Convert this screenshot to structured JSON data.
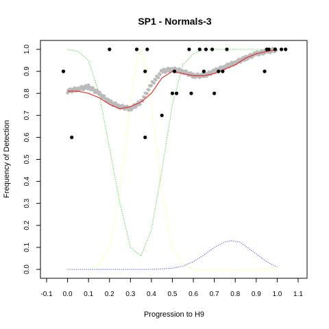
{
  "chart_data": {
    "type": "scatter",
    "title": "SP1 - Normals-3",
    "xlabel": "Progression to H9",
    "ylabel": "Frequency of Detection",
    "xlim": [
      -0.1,
      1.1
    ],
    "ylim": [
      0.0,
      1.0
    ],
    "xticks": [
      "-0.1",
      "0.0",
      "0.1",
      "0.2",
      "0.3",
      "0.4",
      "0.5",
      "0.6",
      "0.7",
      "0.8",
      "0.9",
      "1.0",
      "1.1"
    ],
    "yticks": [
      "0.0",
      "0.1",
      "0.2",
      "0.3",
      "0.4",
      "0.5",
      "0.6",
      "0.7",
      "0.8",
      "0.9",
      "1.0"
    ],
    "grid": false,
    "series": [
      {
        "kind": "points",
        "color": "#000000",
        "points": [
          [
            -0.02,
            0.9
          ],
          [
            0.02,
            0.6
          ],
          [
            0.2,
            1.0
          ],
          [
            0.33,
            1.0
          ],
          [
            0.37,
            0.9
          ],
          [
            0.37,
            0.6
          ],
          [
            0.38,
            1.0
          ],
          [
            0.45,
            0.7
          ],
          [
            0.5,
            0.8
          ],
          [
            0.51,
            0.9
          ],
          [
            0.52,
            0.8
          ],
          [
            0.58,
            1.0
          ],
          [
            0.59,
            0.8
          ],
          [
            0.63,
            1.0
          ],
          [
            0.65,
            0.9
          ],
          [
            0.66,
            1.0
          ],
          [
            0.69,
            1.0
          ],
          [
            0.7,
            0.8
          ],
          [
            0.72,
            0.9
          ],
          [
            0.74,
            0.9
          ],
          [
            0.76,
            1.0
          ],
          [
            0.94,
            0.9
          ],
          [
            0.95,
            1.0
          ],
          [
            0.96,
            1.0
          ],
          [
            0.99,
            1.0
          ],
          [
            1.02,
            1.0
          ],
          [
            1.04,
            1.0
          ]
        ]
      },
      {
        "kind": "smoothed-points",
        "color": "#bbbbbb",
        "x": [
          0.0,
          0.05,
          0.1,
          0.15,
          0.2,
          0.25,
          0.3,
          0.35,
          0.4,
          0.45,
          0.5,
          0.55,
          0.6,
          0.65,
          0.7,
          0.75,
          0.8,
          0.85,
          0.9,
          0.95,
          1.0
        ],
        "y": [
          0.81,
          0.82,
          0.83,
          0.8,
          0.76,
          0.74,
          0.73,
          0.76,
          0.84,
          0.9,
          0.91,
          0.9,
          0.88,
          0.88,
          0.9,
          0.92,
          0.94,
          0.96,
          0.98,
          0.99,
          1.0
        ]
      },
      {
        "kind": "line",
        "color": "#e03030",
        "x": [
          0.0,
          0.05,
          0.1,
          0.15,
          0.2,
          0.25,
          0.3,
          0.35,
          0.4,
          0.45,
          0.5,
          0.55,
          0.6,
          0.65,
          0.7,
          0.75,
          0.8,
          0.85,
          0.9,
          0.95,
          1.0
        ],
        "y": [
          0.81,
          0.81,
          0.8,
          0.78,
          0.75,
          0.73,
          0.74,
          0.76,
          0.8,
          0.87,
          0.9,
          0.89,
          0.88,
          0.88,
          0.89,
          0.91,
          0.93,
          0.96,
          0.98,
          0.99,
          1.0
        ]
      },
      {
        "kind": "line",
        "style": "dotted",
        "color": "#33cc33",
        "x": [
          0.0,
          0.05,
          0.1,
          0.15,
          0.2,
          0.25,
          0.3,
          0.35,
          0.4,
          0.45,
          0.5,
          0.55,
          0.6,
          0.65,
          0.7,
          0.75,
          0.8,
          0.9,
          1.0
        ],
        "y": [
          1.0,
          0.99,
          0.95,
          0.8,
          0.55,
          0.3,
          0.1,
          0.06,
          0.18,
          0.45,
          0.75,
          0.93,
          0.98,
          1.0,
          1.0,
          1.0,
          1.0,
          1.0,
          1.0
        ]
      },
      {
        "kind": "line",
        "style": "dotted",
        "color": "#ffff66",
        "x": [
          0.0,
          0.1,
          0.15,
          0.2,
          0.25,
          0.3,
          0.33,
          0.35,
          0.38,
          0.4,
          0.45,
          0.5,
          0.55,
          0.6,
          0.7,
          0.8,
          0.9,
          1.0
        ],
        "y": [
          0.0,
          0.0,
          0.02,
          0.1,
          0.35,
          0.75,
          0.95,
          1.0,
          0.9,
          0.75,
          0.35,
          0.1,
          0.02,
          0.0,
          0.0,
          0.0,
          0.0,
          0.0
        ]
      },
      {
        "kind": "line",
        "style": "dotted",
        "color": "#3333ee",
        "x": [
          0.0,
          0.1,
          0.2,
          0.3,
          0.4,
          0.5,
          0.55,
          0.6,
          0.65,
          0.7,
          0.75,
          0.78,
          0.82,
          0.85,
          0.9,
          0.95,
          1.0
        ],
        "y": [
          0.0,
          0.0,
          0.0,
          0.0,
          0.0,
          0.005,
          0.015,
          0.035,
          0.065,
          0.1,
          0.125,
          0.13,
          0.125,
          0.105,
          0.07,
          0.035,
          0.01
        ]
      }
    ]
  }
}
